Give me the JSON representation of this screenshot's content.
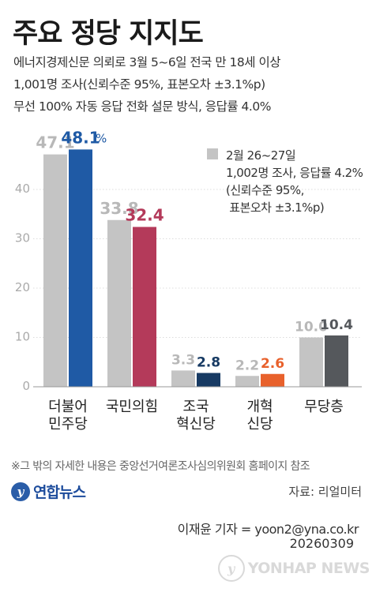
{
  "header": {
    "title": "주요 정당 지지도",
    "sub_lines": [
      "에너지경제신문 의뢰로 3월 5~6일 전국 만 18세 이상",
      "1,001명 조사(신뢰수준 95%, 표본오차 ±3.1%p)",
      "무선 100% 자동 응답 전화 설문 방식, 응답률 4.0%"
    ]
  },
  "legend": {
    "lines": [
      "2월 26~27일",
      "1,002명 조사, 응답률 4.2%",
      "(신뢰수준 95%,",
      " 표본오차 ±3.1%p)"
    ],
    "colors": {
      "previous": "#c4c4c4"
    }
  },
  "chart_data": {
    "type": "bar",
    "categories": [
      [
        "더불어",
        "민주당"
      ],
      [
        "국민의힘"
      ],
      [
        "조국",
        "혁신당"
      ],
      [
        "개혁",
        "신당"
      ],
      [
        "무당층"
      ]
    ],
    "series": [
      {
        "name": "2월 26~27일",
        "values": [
          47.1,
          33.8,
          3.3,
          2.2,
          10.0
        ],
        "labels": [
          "47.1",
          "33.8",
          "3.3",
          "2.2",
          "10.0"
        ]
      },
      {
        "values": [
          48.1,
          32.4,
          2.8,
          2.6,
          10.4
        ],
        "labels": [
          "48.1",
          "32.4",
          "2.8",
          "2.6",
          "10.4"
        ]
      }
    ],
    "percent_suffix": "%",
    "colors": [
      "#1f5aa5",
      "#b43a5a",
      "#173a63",
      "#e8612c",
      "#55585c"
    ],
    "yticks": [
      0,
      10,
      20,
      30,
      40
    ],
    "ylim": [
      0,
      50
    ],
    "grid": true
  },
  "footer": {
    "footnote": "※그 밖의 자세한 내용은 중앙선거여론조사심의위원회 홈페이지 참조",
    "logo_text": "연합뉴스",
    "logo_mark": "y",
    "source": "자료: 리얼미터",
    "credit": "이재윤 기자 = yoon2@yna.co.kr",
    "date": "20260309",
    "watermark": "YONHAP NEWS"
  }
}
